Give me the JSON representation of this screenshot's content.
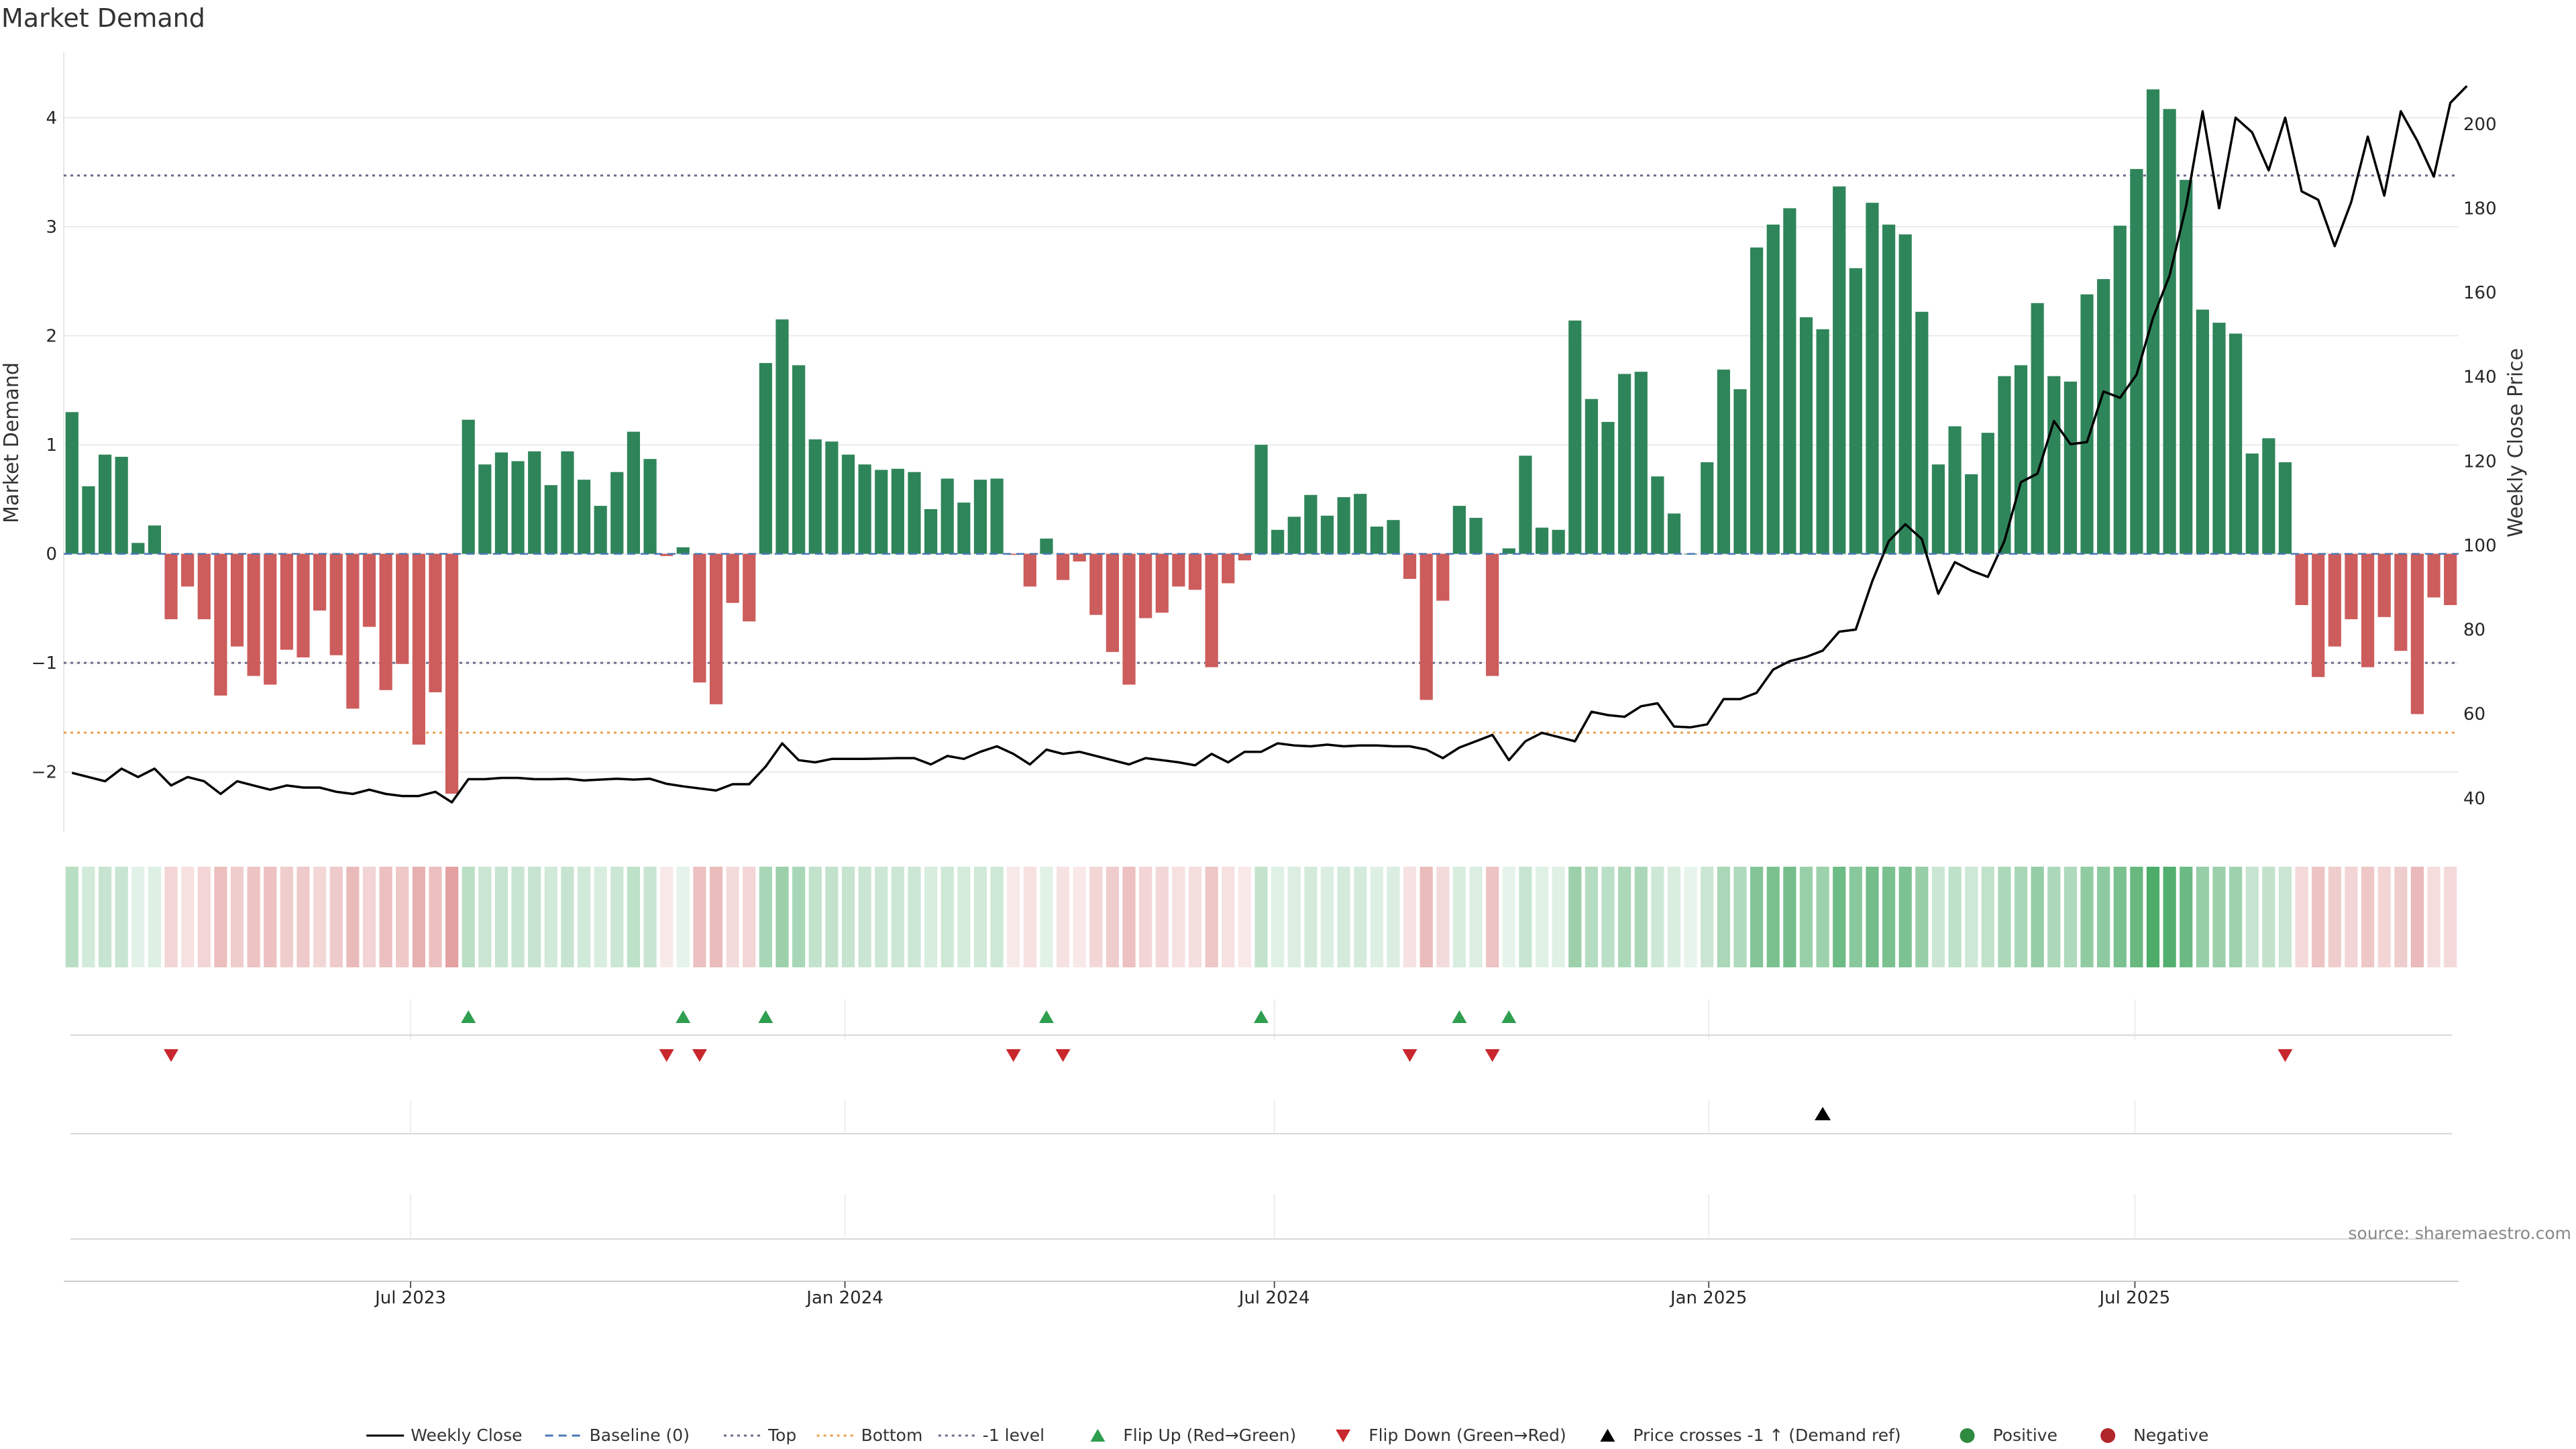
{
  "chart_data": {
    "type": "bar",
    "title": "Market Demand",
    "ylabel_left": "Market Demand",
    "ylabel_right": "Weekly Close Price",
    "ylim_left": [
      -2.55,
      4.6
    ],
    "ylim_right": [
      32,
      217
    ],
    "yticks_left": [
      {
        "v": 4,
        "t": "4"
      },
      {
        "v": 3,
        "t": "3"
      },
      {
        "v": 2,
        "t": "2"
      },
      {
        "v": 1,
        "t": "1"
      },
      {
        "v": 0,
        "t": "0"
      },
      {
        "v": -1,
        "t": "−1"
      },
      {
        "v": -2,
        "t": "−2"
      }
    ],
    "yticks_right": [
      {
        "v": 200,
        "t": "200"
      },
      {
        "v": 180,
        "t": "180"
      },
      {
        "v": 160,
        "t": "160"
      },
      {
        "v": 140,
        "t": "140"
      },
      {
        "v": 120,
        "t": "120"
      },
      {
        "v": 100,
        "t": "100"
      },
      {
        "v": 80,
        "t": "80"
      },
      {
        "v": 60,
        "t": "60"
      },
      {
        "v": 40,
        "t": "40"
      }
    ],
    "x_ticks": [
      {
        "i": 21,
        "label": "Jul 2023"
      },
      {
        "i": 47.3,
        "label": "Jan 2024"
      },
      {
        "i": 73.3,
        "label": "Jul 2024"
      },
      {
        "i": 99.6,
        "label": "Jan 2025"
      },
      {
        "i": 125.4,
        "label": "Jul 2025"
      }
    ],
    "reference_lines": {
      "top": 3.47,
      "bottom": -1.64,
      "minus_one": -1,
      "baseline": 0
    },
    "demand": [
      1.3,
      0.62,
      0.91,
      0.89,
      0.1,
      0.26,
      -0.6,
      -0.3,
      -0.6,
      -1.3,
      -0.85,
      -1.12,
      -1.2,
      -0.88,
      -0.95,
      -0.52,
      -0.93,
      -1.42,
      -0.67,
      -1.25,
      -1.01,
      -1.75,
      -1.27,
      -2.2,
      1.23,
      0.82,
      0.93,
      0.85,
      0.94,
      0.63,
      0.94,
      0.68,
      0.44,
      0.75,
      1.12,
      0.87,
      -0.02,
      0.06,
      -1.18,
      -1.38,
      -0.45,
      -0.62,
      1.75,
      2.15,
      1.73,
      1.05,
      1.03,
      0.91,
      0.82,
      0.77,
      0.78,
      0.75,
      0.41,
      0.69,
      0.47,
      0.68,
      0.69,
      -0.01,
      -0.3,
      0.14,
      -0.24,
      -0.07,
      -0.56,
      -0.9,
      -1.2,
      -0.59,
      -0.54,
      -0.3,
      -0.33,
      -1.04,
      -0.27,
      -0.06,
      1.0,
      0.22,
      0.34,
      0.54,
      0.35,
      0.52,
      0.55,
      0.25,
      0.31,
      -0.23,
      -1.34,
      -0.43,
      0.44,
      0.33,
      -1.12,
      0.05,
      0.9,
      0.24,
      0.22,
      2.14,
      1.42,
      1.21,
      1.65,
      1.67,
      0.71,
      0.37,
      0.0,
      0.84,
      1.69,
      1.51,
      2.81,
      3.02,
      3.17,
      2.17,
      2.06,
      3.37,
      2.62,
      3.22,
      3.02,
      2.93,
      2.22,
      0.82,
      1.17,
      0.73,
      1.11,
      1.63,
      1.73,
      2.3,
      1.63,
      1.58,
      2.38,
      2.52,
      3.01,
      3.53,
      4.26,
      4.08,
      3.43,
      2.24,
      2.12,
      2.02,
      0.92,
      1.06,
      0.84,
      -0.47,
      -1.13,
      -0.85,
      -0.6,
      -1.04,
      -0.58,
      -0.89,
      -1.47,
      -0.4,
      -0.47
    ],
    "weekly_close": [
      46,
      45,
      44,
      47,
      45,
      47,
      43,
      45,
      44,
      41,
      44,
      43,
      42,
      43,
      42.5,
      42.5,
      41.5,
      41,
      42,
      41,
      40.5,
      40.5,
      41.5,
      39,
      44.5,
      44.5,
      44.8,
      44.8,
      44.5,
      44.5,
      44.6,
      44.2,
      44.4,
      44.6,
      44.4,
      44.6,
      43.4,
      42.8,
      42.3,
      41.8,
      43.3,
      43.3,
      47.5,
      53,
      49,
      48.5,
      49.3,
      49.3,
      49.3,
      49.4,
      49.5,
      49.5,
      48,
      50,
      49.3,
      51,
      52.3,
      50.5,
      48,
      51.5,
      50.5,
      51,
      50,
      49,
      48,
      49.5,
      49,
      48.5,
      47.8,
      50.5,
      48.5,
      51,
      51,
      53,
      52.5,
      52.3,
      52.7,
      52.3,
      52.5,
      52.5,
      52.3,
      52.3,
      51.5,
      49.5,
      52,
      53.5,
      55,
      49,
      53.5,
      55.5,
      54.5,
      53.5,
      60.5,
      59.7,
      59.3,
      61.8,
      62.5,
      57,
      56.8,
      57.5,
      63.5,
      63.5,
      65,
      70.5,
      72.5,
      73.5,
      75,
      79.5,
      80,
      91.5,
      101,
      105,
      101.5,
      88.5,
      96,
      94,
      92.5,
      101,
      115,
      117,
      129.5,
      124,
      124.5,
      136.5,
      135,
      140.5,
      154,
      164,
      180.5,
      203,
      180,
      201.5,
      198,
      189,
      201.5,
      184,
      182,
      171,
      181.5,
      197,
      183,
      203,
      196,
      187.5,
      205,
      209
    ]
  },
  "flips": {
    "up": [
      24,
      37,
      42,
      59,
      72,
      84,
      87
    ],
    "down": [
      6,
      36,
      38,
      57,
      60,
      81,
      86,
      134
    ]
  },
  "price_cross_events": [
    106
  ],
  "legend": [
    {
      "label": "Weekly Close",
      "symbol": "line-solid",
      "color": "#000000"
    },
    {
      "label": "Baseline (0)",
      "symbol": "line-dashed",
      "color": "#4a79b5"
    },
    {
      "label": "Top",
      "symbol": "line-dotted",
      "color": "#6b6b8a"
    },
    {
      "label": "Bottom",
      "symbol": "line-dotted",
      "color": "#e8a04a"
    },
    {
      "label": "-1 level",
      "symbol": "line-dotted",
      "color": "#6b6b8a"
    },
    {
      "label": "Flip Up (Red→Green)",
      "symbol": "triangle-up",
      "color": "#2e9e4f"
    },
    {
      "label": "Flip Down (Green→Red)",
      "symbol": "triangle-down",
      "color": "#c8282d"
    },
    {
      "label": "Price crosses -1 ↑ (Demand ref)",
      "symbol": "triangle-up",
      "color": "#000000"
    },
    {
      "label": "Positive",
      "symbol": "dot",
      "color": "#2e8a3f"
    },
    {
      "label": "Negative",
      "symbol": "dot",
      "color": "#b0262a"
    }
  ],
  "source": "source: sharemaestro.com",
  "colors": {
    "positive": "#2f855a",
    "negative": "#cd5c5c",
    "line": "#000000",
    "grid": "#ebebeb"
  }
}
